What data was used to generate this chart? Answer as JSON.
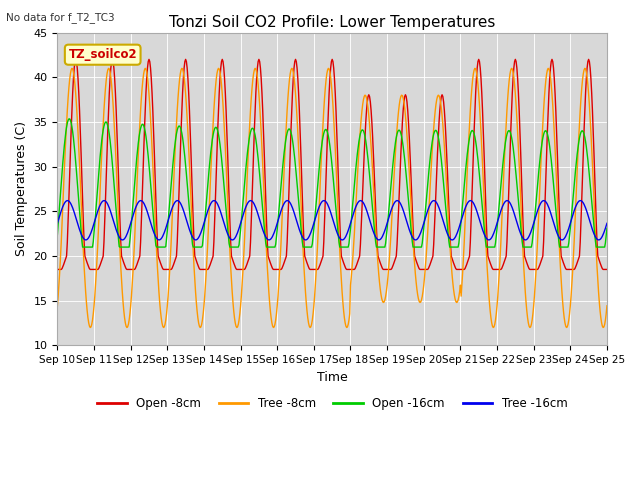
{
  "title": "Tonzi Soil CO2 Profile: Lower Temperatures",
  "xlabel": "Time",
  "ylabel": "Soil Temperatures (C)",
  "subtitle": "No data for f_T2_TC3",
  "legend_label": "TZ_soilco2",
  "ylim": [
    10,
    45
  ],
  "xlim": [
    0,
    360
  ],
  "background_color": "#ffffff",
  "plot_bg_color": "#d8d8d8",
  "series_colors": {
    "open_8cm": "#dd0000",
    "tree_8cm": "#ff9900",
    "open_16cm": "#00cc00",
    "tree_16cm": "#0000ee"
  },
  "legend_entries": [
    {
      "label": "Open -8cm",
      "color": "#dd0000"
    },
    {
      "label": "Tree -8cm",
      "color": "#ff9900"
    },
    {
      "label": "Open -16cm",
      "color": "#00cc00"
    },
    {
      "label": "Tree -16cm",
      "color": "#0000ee"
    }
  ],
  "tick_labels": [
    "Sep 10",
    "Sep 11",
    "Sep 12",
    "Sep 13",
    "Sep 14",
    "Sep 15",
    "Sep 16",
    "Sep 17",
    "Sep 18",
    "Sep 19",
    "Sep 20",
    "Sep 21",
    "Sep 22",
    "Sep 23",
    "Sep 24",
    "Sep 25"
  ],
  "tick_positions": [
    0,
    24,
    48,
    72,
    96,
    120,
    144,
    168,
    192,
    216,
    240,
    264,
    288,
    312,
    336,
    360
  ],
  "yticks": [
    10,
    15,
    20,
    25,
    30,
    35,
    40,
    45
  ]
}
